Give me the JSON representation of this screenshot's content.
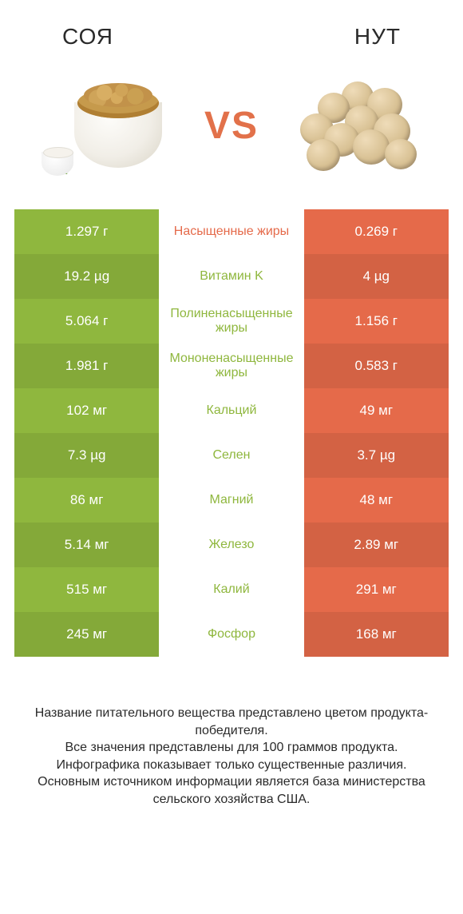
{
  "header": {
    "left": "СОЯ",
    "right": "НУТ",
    "vs": "VS"
  },
  "colors": {
    "left_col": "#8fb73e",
    "right_col": "#e56a4a",
    "mid_text_default": "#e56a4a",
    "mid_text_winner_left": "#8fb73e",
    "row_dark_overlay": "rgba(0,0,0,0.08)",
    "background": "#ffffff"
  },
  "table": {
    "rows": [
      {
        "left": "1.297 г",
        "label": "Насыщенные жиры",
        "right": "0.269 г",
        "label_color": "#e56a4a"
      },
      {
        "left": "19.2 µg",
        "label": "Витамин K",
        "right": "4 µg",
        "label_color": "#8fb73e"
      },
      {
        "left": "5.064 г",
        "label": "Полиненасыщенные жиры",
        "right": "1.156 г",
        "label_color": "#8fb73e"
      },
      {
        "left": "1.981 г",
        "label": "Мононенасыщенные жиры",
        "right": "0.583 г",
        "label_color": "#8fb73e"
      },
      {
        "left": "102 мг",
        "label": "Кальций",
        "right": "49 мг",
        "label_color": "#8fb73e"
      },
      {
        "left": "7.3 µg",
        "label": "Селен",
        "right": "3.7 µg",
        "label_color": "#8fb73e"
      },
      {
        "left": "86 мг",
        "label": "Магний",
        "right": "48 мг",
        "label_color": "#8fb73e"
      },
      {
        "left": "5.14 мг",
        "label": "Железо",
        "right": "2.89 мг",
        "label_color": "#8fb73e"
      },
      {
        "left": "515 мг",
        "label": "Калий",
        "right": "291 мг",
        "label_color": "#8fb73e"
      },
      {
        "left": "245 мг",
        "label": "Фосфор",
        "right": "168 мг",
        "label_color": "#8fb73e"
      }
    ]
  },
  "footer": {
    "line1": "Название питательного вещества представлено цветом продукта-победителя.",
    "line2": "Все значения представлены для 100 граммов продукта.",
    "line3": "Инфографика показывает только существенные различия.",
    "line4": "Основным источником информации является база министерства сельского хозяйства США."
  }
}
